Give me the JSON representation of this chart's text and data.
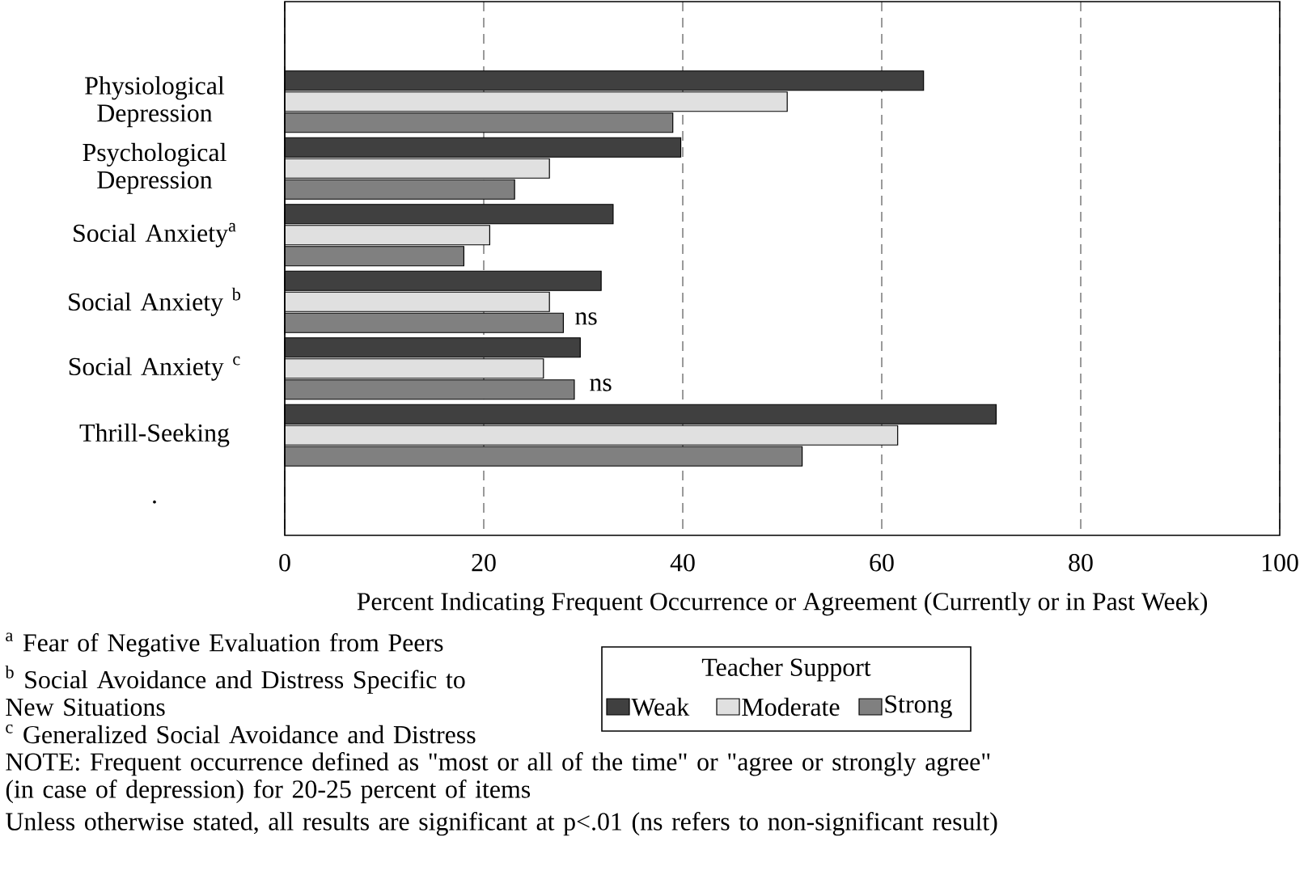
{
  "chart_data": {
    "type": "bar",
    "orientation": "horizontal",
    "categories": [
      null,
      "Physiological Depression",
      "Psychological Depression",
      "Social Anxiety$^{a}$",
      "Social Anxiety $^{b}$",
      "Social Anxiety $^{c}$",
      "Thrill-Seeking",
      "."
    ],
    "series": [
      {
        "name": "Weak",
        "color": "#404040",
        "values": [
          null,
          64.2,
          39.8,
          33.0,
          31.8,
          29.7,
          71.5,
          null
        ]
      },
      {
        "name": "Moderate",
        "color": "#e0e0e0",
        "values": [
          null,
          50.5,
          26.6,
          20.6,
          26.6,
          26.0,
          61.6,
          null
        ]
      },
      {
        "name": "Strong",
        "color": "#808080",
        "values": [
          null,
          39.0,
          23.1,
          18.0,
          28.0,
          29.1,
          52.0,
          null
        ]
      }
    ],
    "xlim": [
      0,
      100
    ],
    "xticks": [
      0,
      20,
      40,
      60,
      80,
      100
    ],
    "grid": "x",
    "xlabel": "Percent Indicating Frequent Occurrence or Agreement (Currently or in Past Week)",
    "legend_title": "Teacher Support",
    "legend": "bottom",
    "annotations": [
      "ns",
      "ns",
      "$^{a}$ Fear of Negative Evaluation from Peers",
      "$^{b}$ Social Avoidance and Distress Specific to New Situations",
      "$^{c}$ Generalized Social Avoidance and Distress",
      "NOTE:  Frequent occurrence defined as \"most or all of the time\" or \"agree or strongly agree\" (in case of depression) for 20-25 percent of items",
      "Unless otherwise stated, all results are significant at p<.01 (ns refers to non-significant result)"
    ]
  }
}
